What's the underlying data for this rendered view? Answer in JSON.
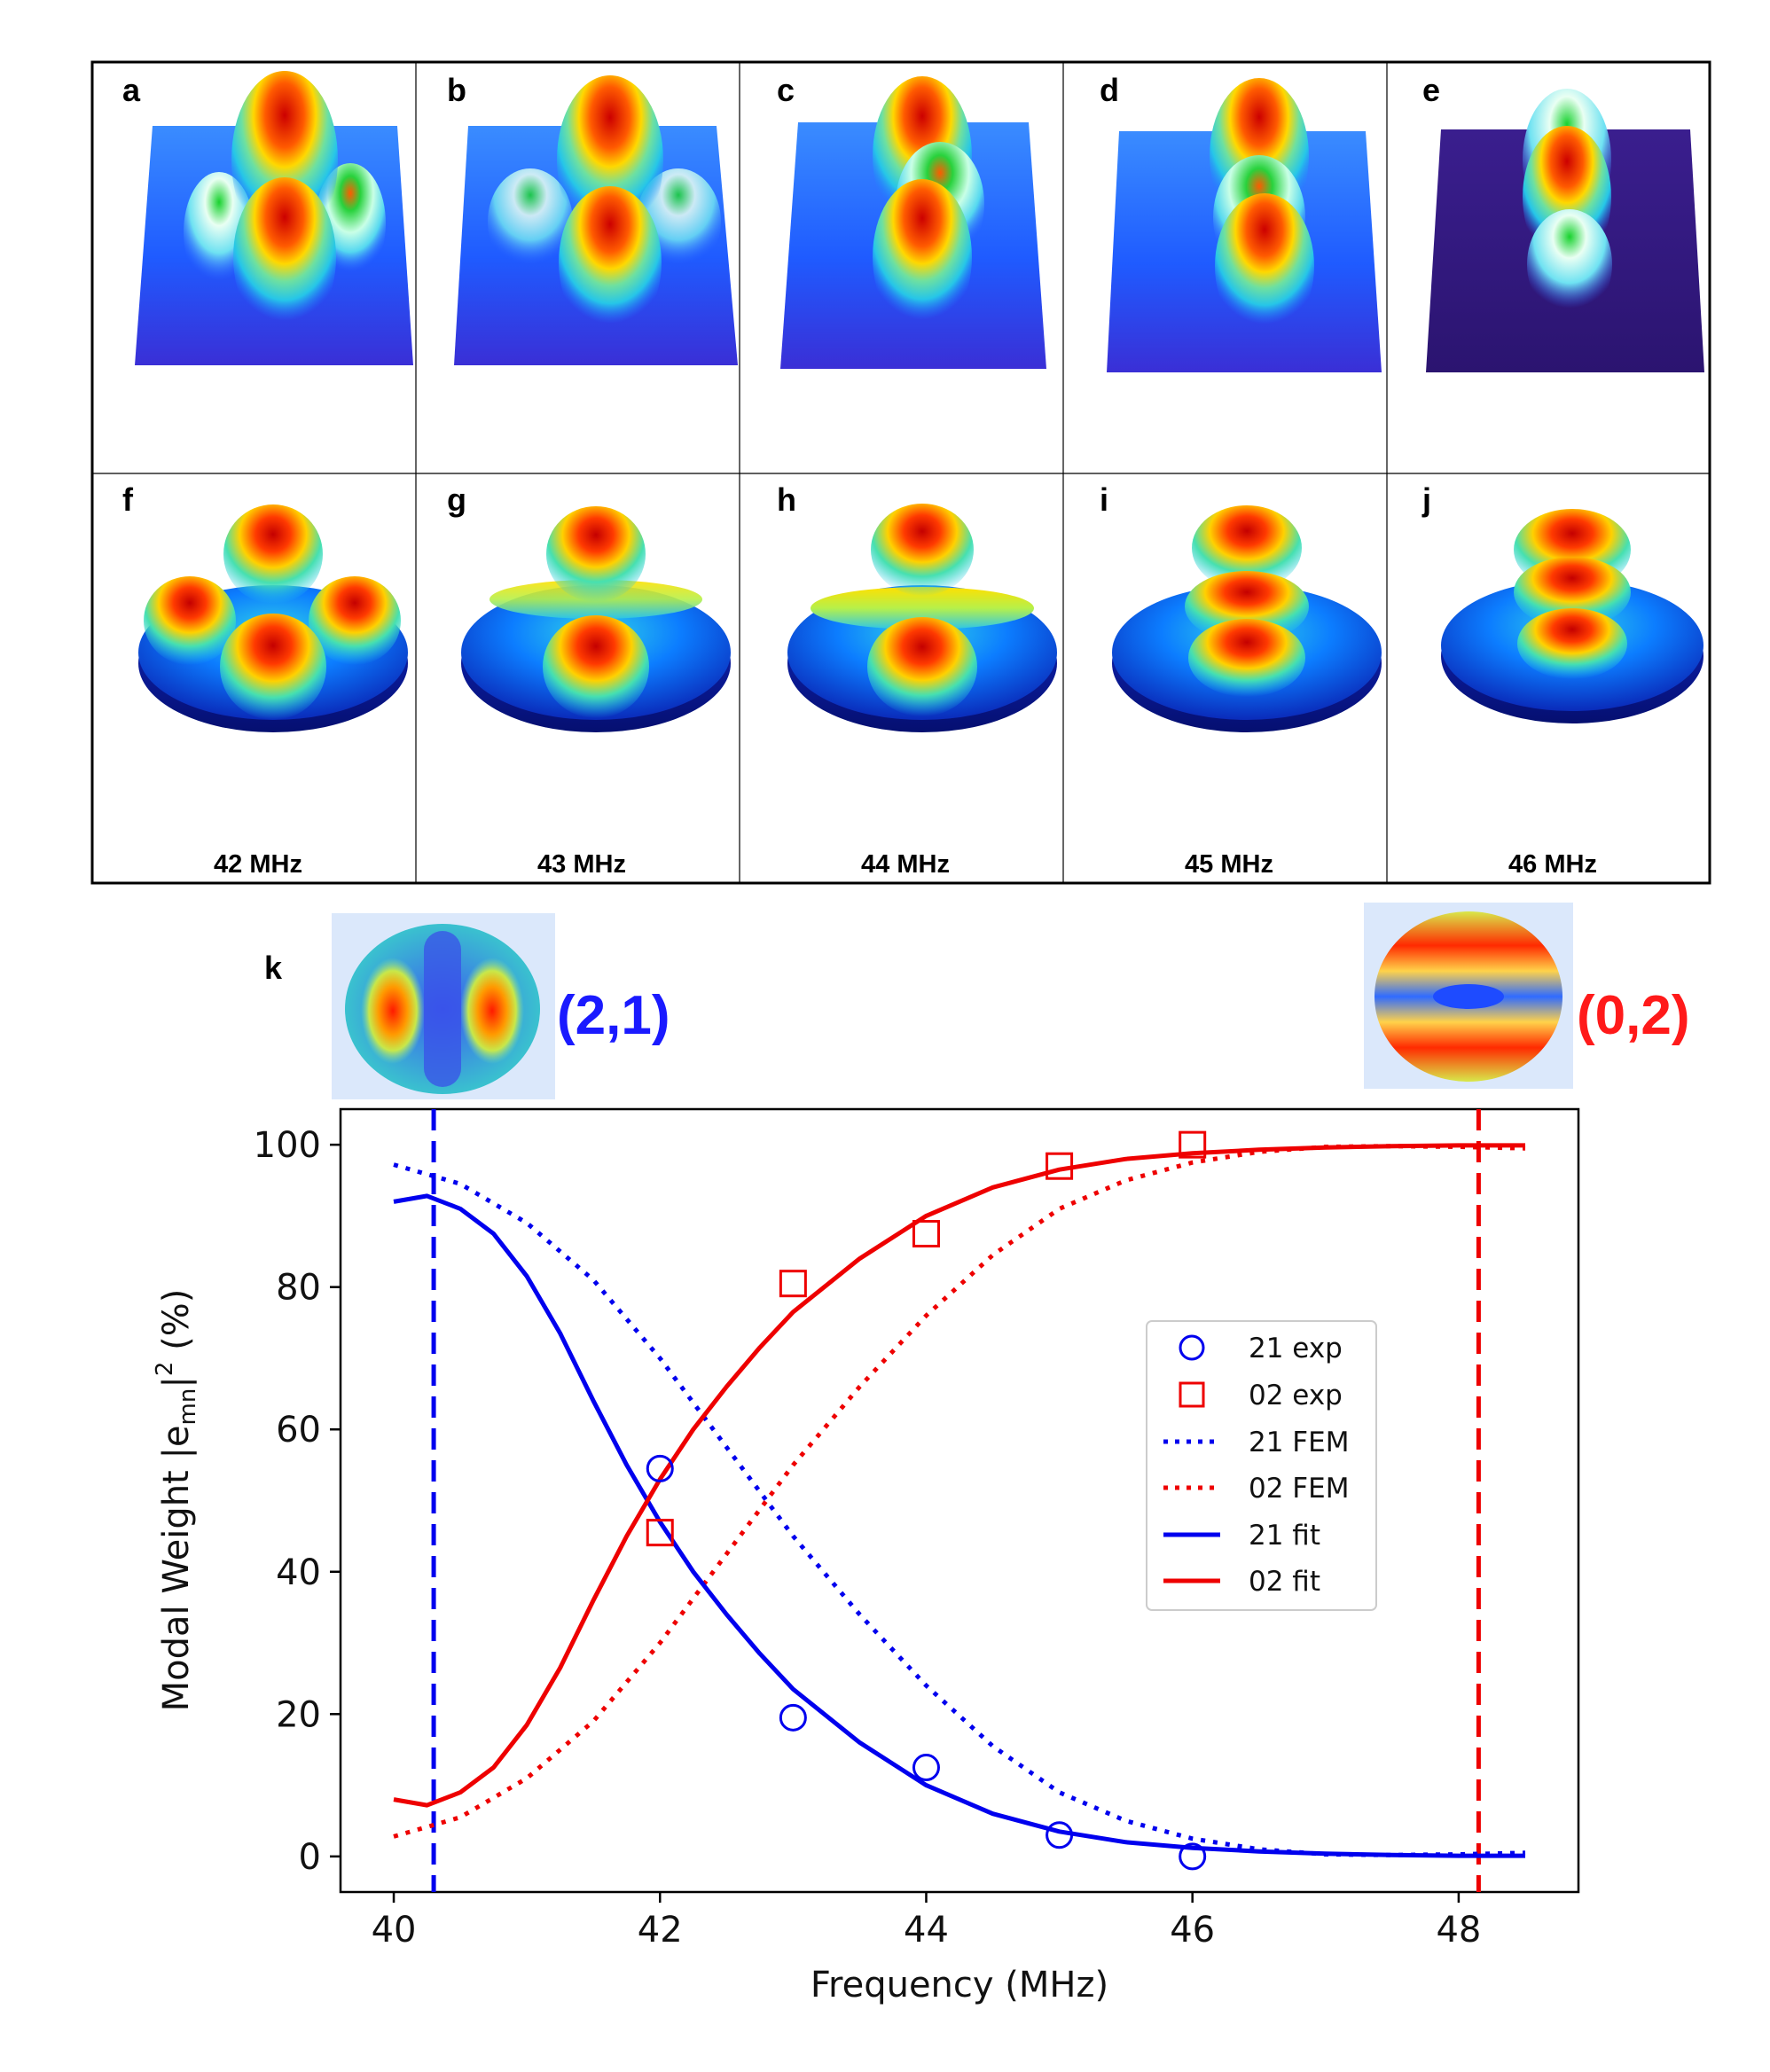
{
  "panels": {
    "top_letters": [
      "a",
      "b",
      "c",
      "d",
      "e"
    ],
    "bottom_letters": [
      "f",
      "g",
      "h",
      "i",
      "j"
    ],
    "frequencies": [
      "42 MHz",
      "43 MHz",
      "44 MHz",
      "45 MHz",
      "46 MHz"
    ]
  },
  "mode_insets": {
    "panel_letter": "k",
    "left_label": "(2,1)",
    "right_label": "(0,2)",
    "left_color": "#1a1aff",
    "right_color": "#ff1a1a"
  },
  "chart_data": {
    "type": "line",
    "xlabel": "Frequency (MHz)",
    "ylabel_prefix": "Modal Weight |e",
    "ylabel_sub": "mn",
    "ylabel_suffix": "|",
    "ylabel_sup": "2",
    "ylabel_unit": " (%)",
    "xlim": [
      39.6,
      48.9
    ],
    "ylim": [
      -5,
      105
    ],
    "xticks": [
      40,
      42,
      44,
      46,
      48
    ],
    "yticks": [
      0,
      20,
      40,
      60,
      80,
      100
    ],
    "vlines": [
      {
        "x": 40.3,
        "color": "#0000ee"
      },
      {
        "x": 48.15,
        "color": "#ee0000"
      }
    ],
    "series": [
      {
        "name": "21 exp",
        "kind": "markers",
        "marker": "circle",
        "color": "#0000ee",
        "x": [
          42,
          43,
          44,
          45,
          46
        ],
        "y": [
          54.5,
          19.5,
          12.5,
          3.0,
          0.0
        ]
      },
      {
        "name": "02 exp",
        "kind": "markers",
        "marker": "square",
        "color": "#ee0000",
        "x": [
          42,
          43,
          44,
          45,
          46
        ],
        "y": [
          45.5,
          80.5,
          87.5,
          97.0,
          100.0
        ]
      },
      {
        "name": "21 FEM",
        "kind": "line",
        "style": "dotted",
        "color": "#0000ee",
        "x": [
          40.0,
          40.5,
          41.0,
          41.5,
          42.0,
          42.5,
          43.0,
          43.5,
          44.0,
          44.5,
          45.0,
          45.5,
          46.0,
          46.5,
          47.0,
          47.5,
          48.0,
          48.5
        ],
        "y": [
          97.2,
          94.5,
          89.0,
          81.0,
          70.0,
          57.5,
          45.0,
          34.0,
          24.0,
          15.5,
          9.0,
          5.0,
          2.5,
          1.0,
          0.3,
          0.2,
          0.3,
          0.5
        ]
      },
      {
        "name": "02 FEM",
        "kind": "line",
        "style": "dotted",
        "color": "#ee0000",
        "x": [
          40.0,
          40.5,
          41.0,
          41.5,
          42.0,
          42.5,
          43.0,
          43.5,
          44.0,
          44.5,
          45.0,
          45.5,
          46.0,
          46.5,
          47.0,
          47.5,
          48.0,
          48.5
        ],
        "y": [
          2.8,
          5.5,
          11.0,
          19.0,
          30.0,
          42.5,
          55.0,
          66.0,
          76.0,
          84.5,
          91.0,
          95.0,
          97.5,
          99.0,
          99.7,
          99.8,
          99.7,
          99.5
        ]
      },
      {
        "name": "21 fit",
        "kind": "line",
        "style": "solid",
        "color": "#0000ee",
        "x": [
          40.0,
          40.25,
          40.5,
          40.75,
          41.0,
          41.25,
          41.5,
          41.75,
          42.0,
          42.25,
          42.5,
          42.75,
          43.0,
          43.5,
          44.0,
          44.5,
          45.0,
          45.5,
          46.0,
          46.5,
          47.0,
          47.5,
          48.0,
          48.5
        ],
        "y": [
          92.0,
          92.8,
          91.0,
          87.5,
          81.5,
          73.5,
          64.0,
          55.0,
          47.0,
          40.0,
          34.0,
          28.5,
          23.5,
          16.0,
          10.0,
          6.0,
          3.5,
          2.0,
          1.2,
          0.7,
          0.4,
          0.2,
          0.1,
          0.1
        ]
      },
      {
        "name": "02 fit",
        "kind": "line",
        "style": "solid",
        "color": "#ee0000",
        "x": [
          40.0,
          40.25,
          40.5,
          40.75,
          41.0,
          41.25,
          41.5,
          41.75,
          42.0,
          42.25,
          42.5,
          42.75,
          43.0,
          43.5,
          44.0,
          44.5,
          45.0,
          45.5,
          46.0,
          46.5,
          47.0,
          47.5,
          48.0,
          48.5
        ],
        "y": [
          8.0,
          7.2,
          9.0,
          12.5,
          18.5,
          26.5,
          36.0,
          45.0,
          53.0,
          60.0,
          66.0,
          71.5,
          76.5,
          84.0,
          90.0,
          94.0,
          96.5,
          98.0,
          98.8,
          99.3,
          99.6,
          99.8,
          99.9,
          99.9
        ]
      }
    ]
  }
}
